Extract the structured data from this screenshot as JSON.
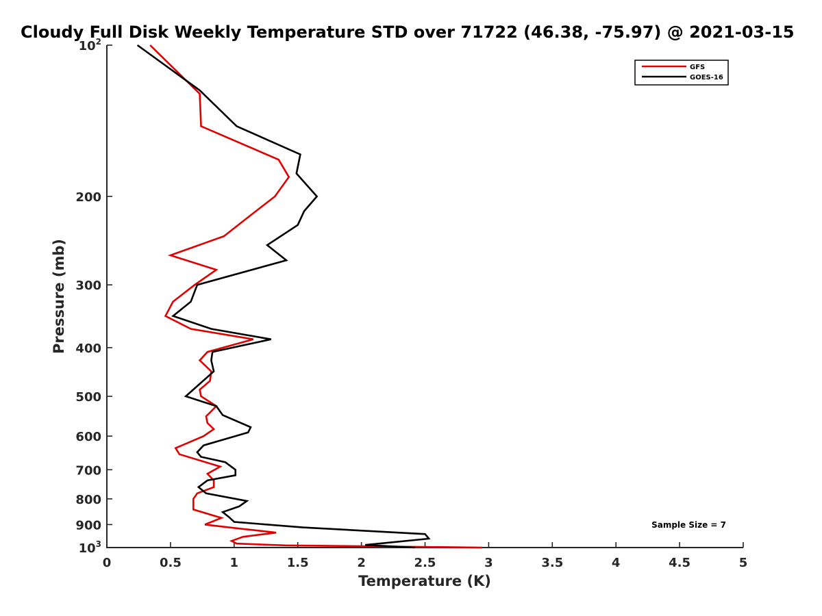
{
  "chart_data": {
    "type": "line",
    "title": "Cloudy Full Disk Weekly Temperature STD over 71722 (46.38, -75.97) @ 2021-03-15",
    "xlabel": "Temperature (K)",
    "ylabel": "Pressure (mb)",
    "xlim": [
      0,
      5
    ],
    "ylim": [
      100,
      1000
    ],
    "yscale": "log",
    "y_reversed": true,
    "grid": false,
    "legend_position": "top-right",
    "x_ticks": [
      0,
      0.5,
      1,
      1.5,
      2,
      2.5,
      3,
      3.5,
      4,
      4.5,
      5
    ],
    "x_tick_labels": [
      "0",
      "0.5",
      "1",
      "1.5",
      "2",
      "2.5",
      "3",
      "3.5",
      "4",
      "4.5",
      "5"
    ],
    "y_ticks": [
      {
        "value": 100,
        "label": "10",
        "exp": "2"
      },
      {
        "value": 200,
        "label": "200",
        "exp": ""
      },
      {
        "value": 300,
        "label": "300",
        "exp": ""
      },
      {
        "value": 400,
        "label": "400",
        "exp": ""
      },
      {
        "value": 500,
        "label": "500",
        "exp": ""
      },
      {
        "value": 600,
        "label": "600",
        "exp": ""
      },
      {
        "value": 700,
        "label": "700",
        "exp": ""
      },
      {
        "value": 800,
        "label": "800",
        "exp": ""
      },
      {
        "value": 900,
        "label": "900",
        "exp": ""
      },
      {
        "value": 1000,
        "label": "10",
        "exp": "3"
      }
    ],
    "series": [
      {
        "name": "GFS",
        "color": "#e00000",
        "points": [
          [
            0.34,
            100
          ],
          [
            0.73,
            125
          ],
          [
            0.74,
            145
          ],
          [
            1.35,
            169
          ],
          [
            1.43,
            183
          ],
          [
            1.32,
            200
          ],
          [
            1.12,
            219
          ],
          [
            0.92,
            240
          ],
          [
            0.5,
            262
          ],
          [
            0.86,
            280
          ],
          [
            0.69,
            300
          ],
          [
            0.52,
            324
          ],
          [
            0.46,
            346
          ],
          [
            0.66,
            367
          ],
          [
            1.15,
            385
          ],
          [
            0.79,
            408
          ],
          [
            0.73,
            424
          ],
          [
            0.82,
            446
          ],
          [
            0.81,
            466
          ],
          [
            0.73,
            485
          ],
          [
            0.74,
            500
          ],
          [
            0.86,
            523
          ],
          [
            0.78,
            548
          ],
          [
            0.79,
            565
          ],
          [
            0.84,
            581
          ],
          [
            0.76,
            600
          ],
          [
            0.54,
            634
          ],
          [
            0.57,
            652
          ],
          [
            0.89,
            690
          ],
          [
            0.79,
            713
          ],
          [
            0.84,
            735
          ],
          [
            0.84,
            758
          ],
          [
            0.71,
            780
          ],
          [
            0.68,
            800
          ],
          [
            0.68,
            840
          ],
          [
            0.9,
            873
          ],
          [
            0.77,
            900
          ],
          [
            1.05,
            917
          ],
          [
            1.33,
            934
          ],
          [
            1.07,
            952
          ],
          [
            0.98,
            970
          ],
          [
            1.02,
            982
          ],
          [
            1.4,
            990
          ],
          [
            2.95,
            1000
          ]
        ]
      },
      {
        "name": "GOES-16",
        "color": "#000000",
        "points": [
          [
            0.24,
            100
          ],
          [
            0.73,
            123
          ],
          [
            1.02,
            145
          ],
          [
            1.52,
            165
          ],
          [
            1.49,
            180
          ],
          [
            1.65,
            200
          ],
          [
            1.55,
            214
          ],
          [
            1.5,
            228
          ],
          [
            1.26,
            250
          ],
          [
            1.41,
            268
          ],
          [
            0.71,
            300
          ],
          [
            0.66,
            324
          ],
          [
            0.52,
            346
          ],
          [
            0.82,
            367
          ],
          [
            1.29,
            385
          ],
          [
            0.83,
            408
          ],
          [
            0.82,
            424
          ],
          [
            0.84,
            446
          ],
          [
            0.62,
            500
          ],
          [
            0.86,
            523
          ],
          [
            0.91,
            545
          ],
          [
            1.13,
            576
          ],
          [
            1.11,
            590
          ],
          [
            0.76,
            626
          ],
          [
            0.71,
            646
          ],
          [
            0.74,
            660
          ],
          [
            0.93,
            676
          ],
          [
            1.01,
            700
          ],
          [
            1.01,
            718
          ],
          [
            0.79,
            735
          ],
          [
            0.72,
            758
          ],
          [
            0.78,
            780
          ],
          [
            1.1,
            808
          ],
          [
            1.04,
            828
          ],
          [
            0.91,
            850
          ],
          [
            0.96,
            870
          ],
          [
            1.0,
            889
          ],
          [
            1.54,
            912
          ],
          [
            2.5,
            940
          ],
          [
            2.53,
            960
          ],
          [
            2.03,
            988
          ],
          [
            2.42,
            1000
          ]
        ]
      }
    ],
    "annotations": [
      {
        "text": "Sample Size = 7",
        "position": "bottom-right"
      }
    ]
  }
}
